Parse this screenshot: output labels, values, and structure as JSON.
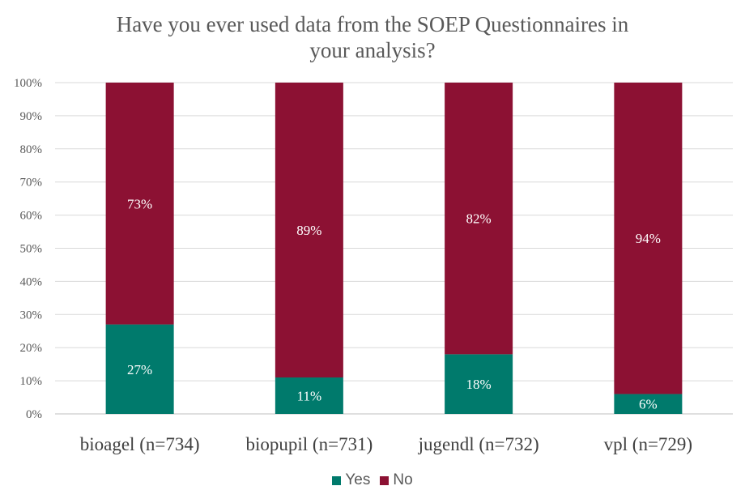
{
  "chart_data": {
    "type": "bar",
    "stacked": true,
    "title_lines": [
      "Have you ever used data from the SOEP Questionnaires in",
      "your analysis?"
    ],
    "categories": [
      "bioagel (n=734)",
      "biopupil (n=731)",
      "jugendl (n=732)",
      "vpl (n=729)"
    ],
    "series": [
      {
        "name": "Yes",
        "color": "#007A6C",
        "values": [
          27,
          11,
          18,
          6
        ],
        "labels": [
          "27%",
          "11%",
          "18%",
          "6%"
        ]
      },
      {
        "name": "No",
        "color": "#8C1133",
        "values": [
          73,
          89,
          82,
          94
        ],
        "labels": [
          "73%",
          "89%",
          "82%",
          "94%"
        ]
      }
    ],
    "yticks": [
      "0%",
      "10%",
      "20%",
      "30%",
      "40%",
      "50%",
      "60%",
      "70%",
      "80%",
      "90%",
      "100%"
    ],
    "ylim": [
      0,
      100
    ],
    "gridlines": true,
    "legend_position": "bottom"
  }
}
